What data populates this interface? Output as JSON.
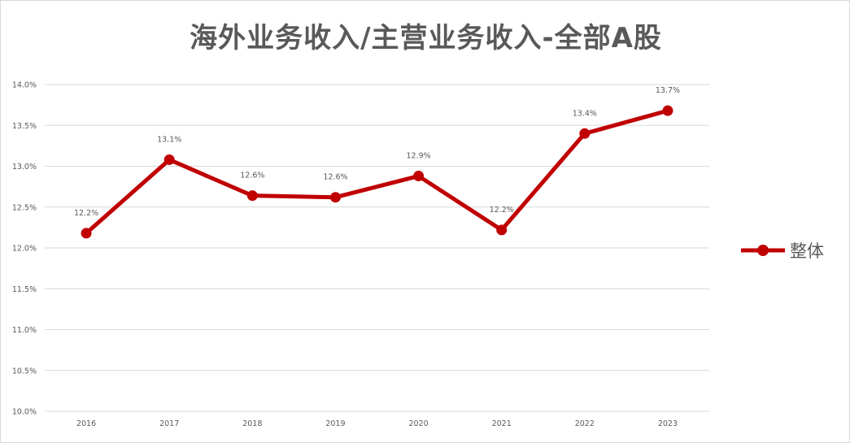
{
  "chart_data": {
    "type": "line",
    "title": "海外业务收入/主营业务收入-全部A股",
    "xlabel": "",
    "ylabel": "",
    "categories": [
      "2016",
      "2017",
      "2018",
      "2019",
      "2020",
      "2021",
      "2022",
      "2023"
    ],
    "series": [
      {
        "name": "整体",
        "values": [
          12.18,
          13.08,
          12.64,
          12.62,
          12.88,
          12.22,
          13.4,
          13.68
        ],
        "data_labels": [
          "12.2%",
          "13.1%",
          "12.6%",
          "12.6%",
          "12.9%",
          "12.2%",
          "13.4%",
          "13.7%"
        ],
        "color": "#c00000"
      }
    ],
    "ylim": [
      10.0,
      14.0
    ],
    "y_ticks": [
      "10.0%",
      "10.5%",
      "11.0%",
      "11.5%",
      "12.0%",
      "12.5%",
      "13.0%",
      "13.5%",
      "14.0%"
    ],
    "grid": true,
    "legend_position": "right",
    "colors": {
      "line": "#c00000",
      "grid": "#d9d9d9",
      "text": "#595959"
    }
  }
}
